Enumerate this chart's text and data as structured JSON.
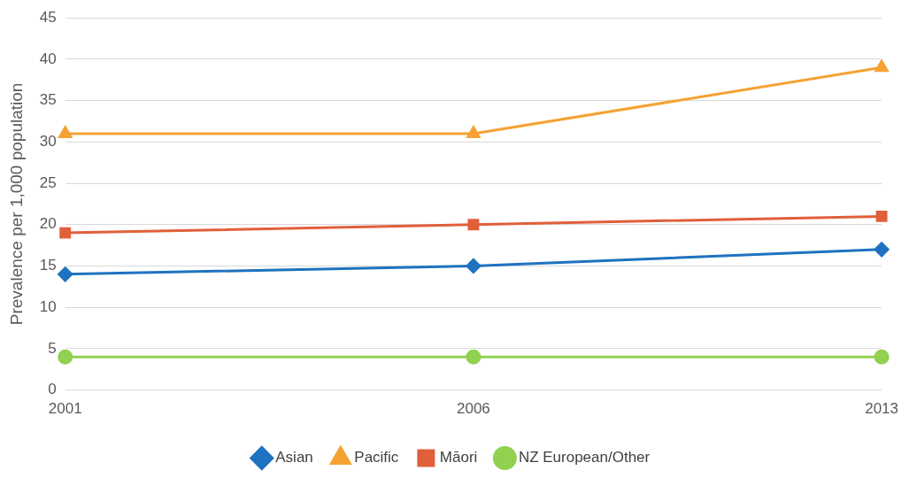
{
  "chart_data": {
    "type": "line",
    "ylabel": "Prevalence per 1,000 population",
    "categories": [
      "2001",
      "2006",
      "2013"
    ],
    "series": [
      {
        "name": "NZ European/Other",
        "color": "#92d050",
        "marker": "circle",
        "values": [
          4,
          4,
          4
        ]
      },
      {
        "name": "Māori",
        "color": "#e0603a",
        "marker": "square",
        "values": [
          19,
          20,
          21
        ]
      },
      {
        "name": "Pacific",
        "color": "#f5a233",
        "marker": "triangle",
        "values": [
          31,
          31,
          39
        ]
      },
      {
        "name": "Asian",
        "color": "#1f72c0",
        "marker": "diamond",
        "values": [
          14,
          15,
          17
        ]
      }
    ],
    "ylim": [
      0,
      45
    ],
    "yticks": [
      0,
      5,
      10,
      15,
      20,
      25,
      30,
      35,
      40,
      45
    ],
    "grid": "y",
    "legend": "bottom",
    "line_style": "solid"
  }
}
